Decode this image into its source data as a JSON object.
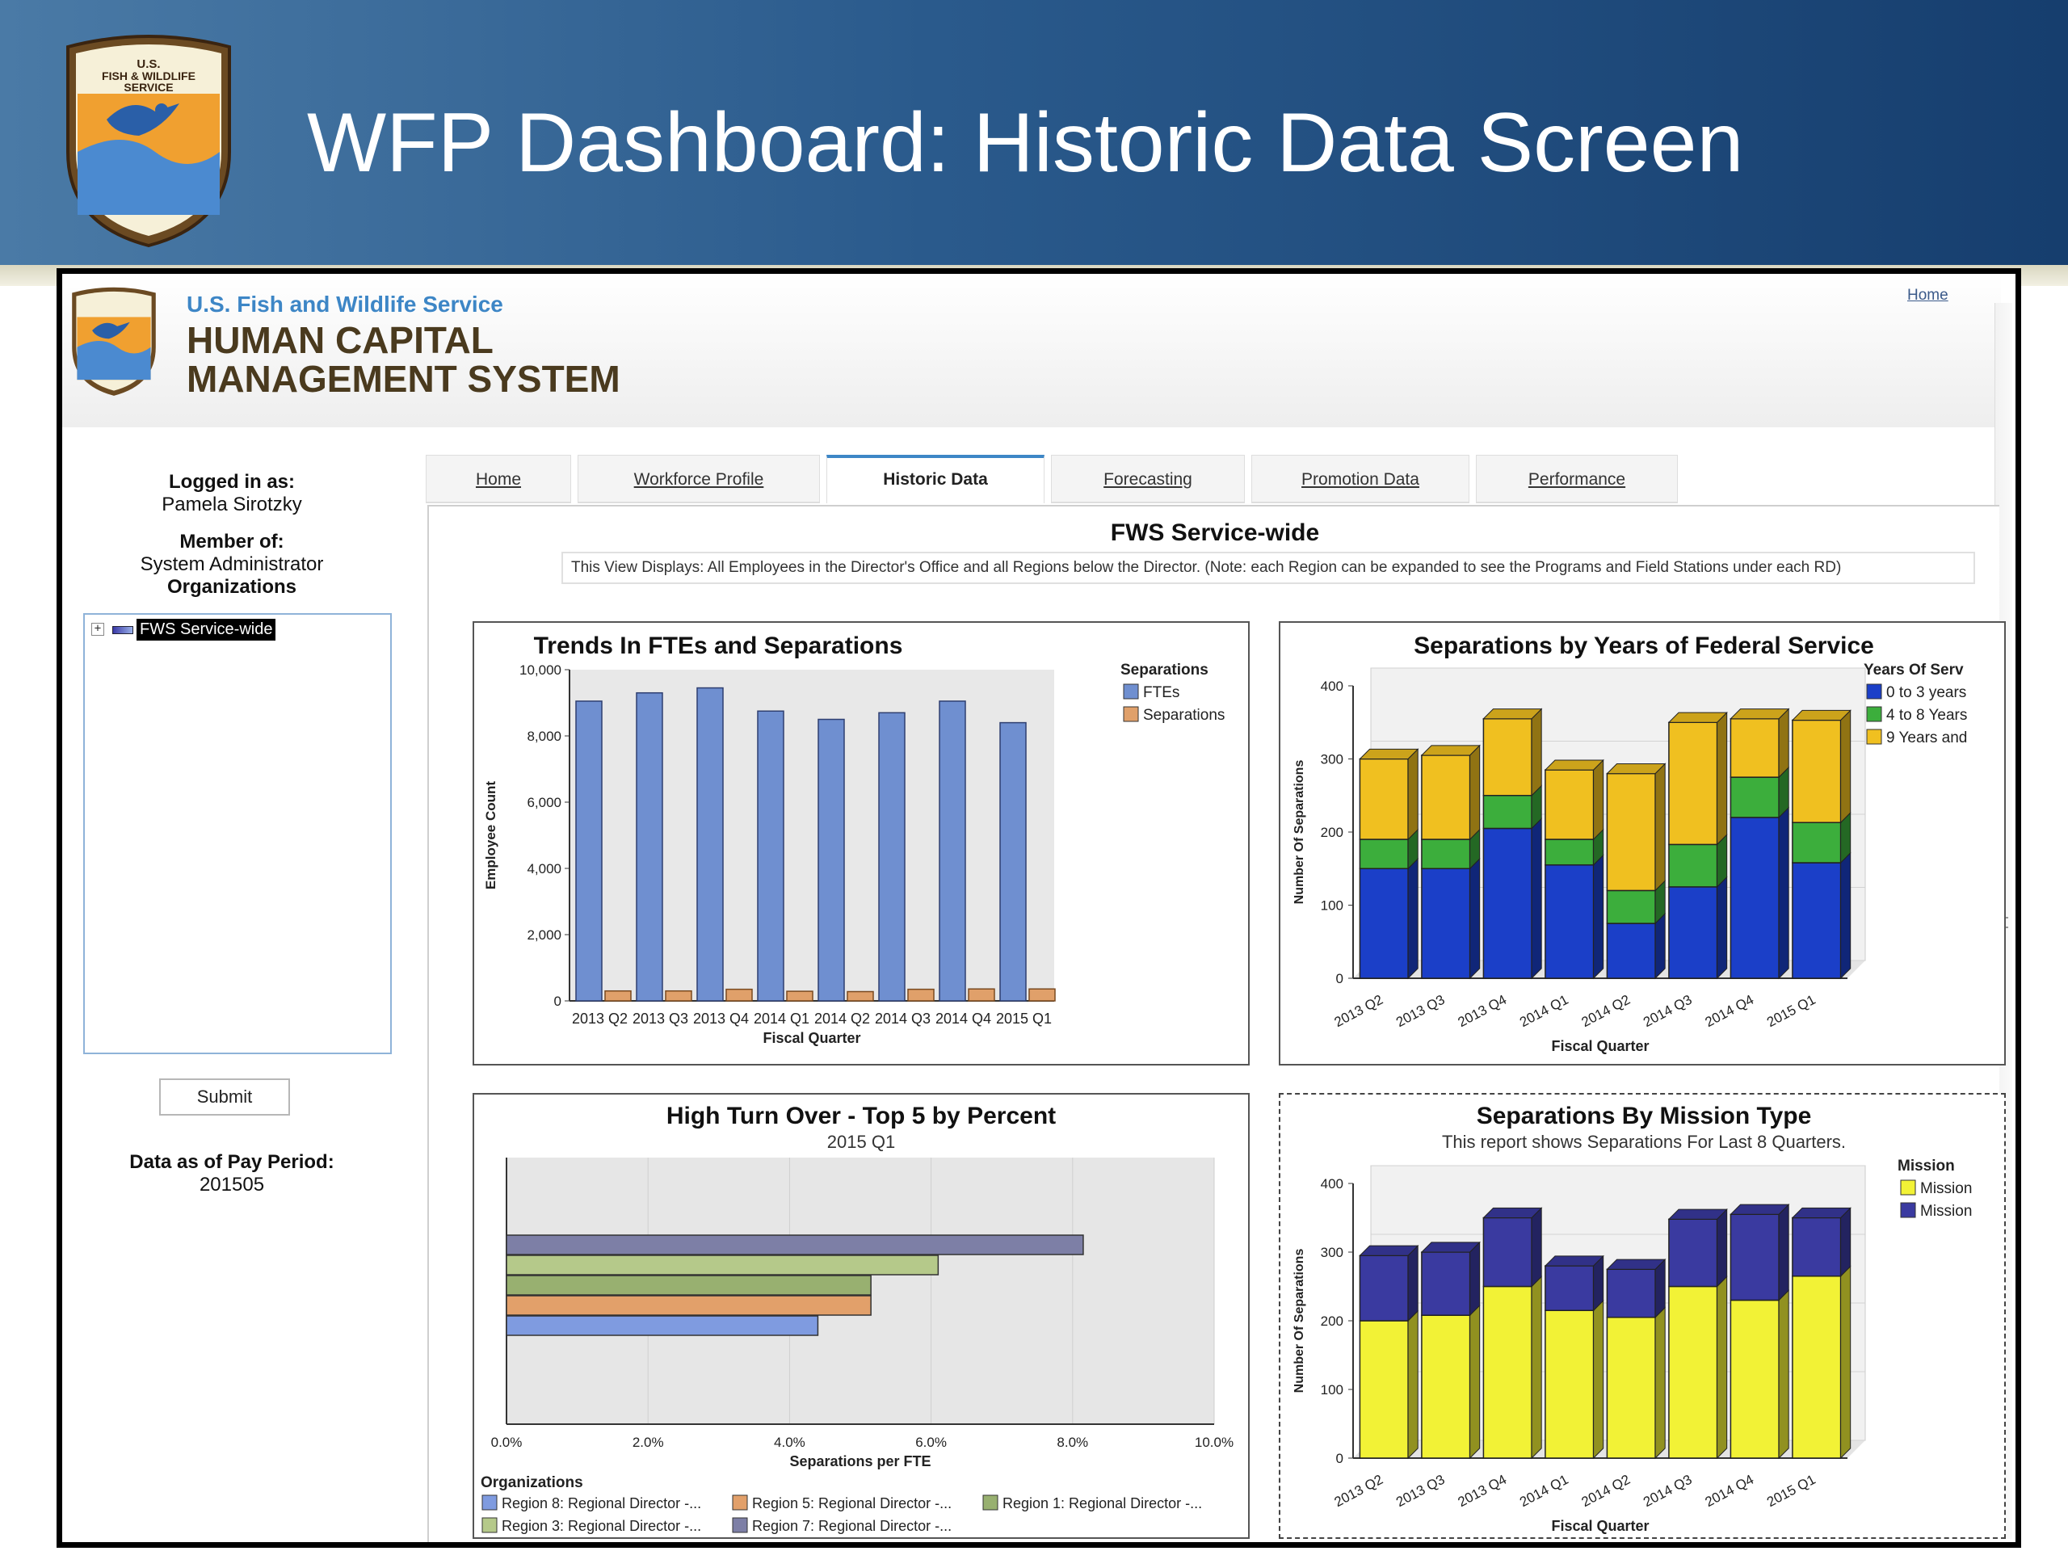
{
  "slide": {
    "title": "WFP Dashboard: Historic Data Screen",
    "logo_text": [
      "U.S.",
      "FISH & WILDLIFE",
      "SERVICE"
    ]
  },
  "app": {
    "agency_name": "U.S. Fish and Wildlife Service",
    "system_name_line1": "HUMAN CAPITAL",
    "system_name_line2": "MANAGEMENT SYSTEM",
    "home_link": "Home"
  },
  "sidebar": {
    "logged_in_label": "Logged in as:",
    "user_name": "Pamela Sirotzky",
    "member_of_label": "Member of:",
    "role": "System Administrator",
    "organizations_label": "Organizations",
    "tree_root": "FWS Service-wide",
    "submit_label": "Submit",
    "data_as_of_label": "Data as of Pay Period:",
    "pay_period": "201505"
  },
  "tabs": [
    {
      "label": "Home",
      "active": false
    },
    {
      "label": "Workforce Profile",
      "active": false
    },
    {
      "label": "Historic Data",
      "active": true
    },
    {
      "label": "Forecasting",
      "active": false
    },
    {
      "label": "Promotion Data",
      "active": false
    },
    {
      "label": "Performance",
      "active": false
    }
  ],
  "content": {
    "title": "FWS Service-wide",
    "info": "This View Displays: All Employees in the Director's Office and all Regions below the Director.  (Note: each Region can be expanded to see the Programs and Field Stations under each RD)"
  },
  "chart_data": [
    {
      "id": "trends",
      "type": "bar",
      "title": "Trends In FTEs and Separations",
      "xlabel": "Fiscal Quarter",
      "ylabel": "Employee Count",
      "ylim": [
        0,
        10000
      ],
      "yticks": [
        0,
        2000,
        4000,
        6000,
        8000,
        10000
      ],
      "ytick_labels": [
        "0",
        "2,000",
        "4,000",
        "6,000",
        "8,000",
        "10,000"
      ],
      "legend_title": "Separations",
      "categories": [
        "2013 Q2",
        "2013 Q3",
        "2013 Q4",
        "2014 Q1",
        "2014 Q2",
        "2014 Q3",
        "2014 Q4",
        "2015 Q1"
      ],
      "series": [
        {
          "name": "FTEs",
          "color": "#6f8fd0",
          "values": [
            9050,
            9300,
            9450,
            8750,
            8500,
            8700,
            9050,
            8400
          ]
        },
        {
          "name": "Separations",
          "color": "#e0a06a",
          "values": [
            300,
            300,
            350,
            290,
            280,
            350,
            360,
            360
          ]
        }
      ]
    },
    {
      "id": "years_service",
      "type": "bar",
      "stacked": true,
      "title": "Separations by Years of  Federal Service",
      "xlabel": "Fiscal Quarter",
      "ylabel": "Number Of Separations",
      "ylim": [
        0,
        400
      ],
      "yticks": [
        0,
        100,
        200,
        300,
        400
      ],
      "legend_title": "Years Of Serv",
      "categories": [
        "2013 Q2",
        "2013 Q3",
        "2013 Q4",
        "2014 Q1",
        "2014 Q2",
        "2014 Q3",
        "2014 Q4",
        "2015 Q1"
      ],
      "series": [
        {
          "name": "0 to 3 years",
          "color": "#1b3fc8",
          "values": [
            150,
            150,
            205,
            155,
            75,
            125,
            220,
            158
          ]
        },
        {
          "name": "4 to 8 Years",
          "color": "#3cae3c",
          "values": [
            40,
            40,
            45,
            35,
            45,
            58,
            55,
            55
          ]
        },
        {
          "name": "9 Years and",
          "color": "#f0c020",
          "values": [
            110,
            115,
            105,
            95,
            160,
            167,
            80,
            140
          ]
        }
      ]
    },
    {
      "id": "turnover",
      "type": "bar",
      "orientation": "horizontal",
      "title": "High Turn Over - Top 5 by Percent",
      "subtitle": "2015 Q1",
      "xlabel": "Separations per FTE",
      "xlim": [
        0,
        10
      ],
      "xticks": [
        0,
        2,
        4,
        6,
        8,
        10
      ],
      "xtick_labels": [
        "0.0%",
        "2.0%",
        "4.0%",
        "6.0%",
        "8.0%",
        "10.0%"
      ],
      "legend_title": "Organizations",
      "series": [
        {
          "name": "Region 7: Regional Director -...",
          "color": "#7d7fa6",
          "value": 8.15
        },
        {
          "name": "Region 3: Regional Director -...",
          "color": "#b5c98a",
          "value": 6.1
        },
        {
          "name": "Region 1: Regional Director -...",
          "color": "#98b070",
          "value": 5.15
        },
        {
          "name": "Region 5: Regional Director -...",
          "color": "#e2a06a",
          "value": 5.15
        },
        {
          "name": "Region 8: Regional Director -...",
          "color": "#7f9be0",
          "value": 4.4
        }
      ]
    },
    {
      "id": "mission_type",
      "type": "bar",
      "stacked": true,
      "title": "Separations By Mission Type",
      "subtitle": "This report shows Separations For Last 8 Quarters.",
      "xlabel": "Fiscal Quarter",
      "ylabel": "Number Of Separations",
      "ylim": [
        0,
        400
      ],
      "yticks": [
        0,
        100,
        200,
        300,
        400
      ],
      "legend_title": "Mission ",
      "categories": [
        "2013 Q2",
        "2013 Q3",
        "2013 Q4",
        "2014 Q1",
        "2014 Q2",
        "2014 Q3",
        "2014 Q4",
        "2015 Q1"
      ],
      "series": [
        {
          "name": "Mission",
          "color": "#f2f236",
          "values": [
            200,
            208,
            250,
            215,
            205,
            250,
            230,
            265
          ]
        },
        {
          "name": "Mission",
          "color": "#3a3aa0",
          "values": [
            95,
            92,
            100,
            65,
            70,
            98,
            125,
            85
          ]
        }
      ]
    }
  ]
}
